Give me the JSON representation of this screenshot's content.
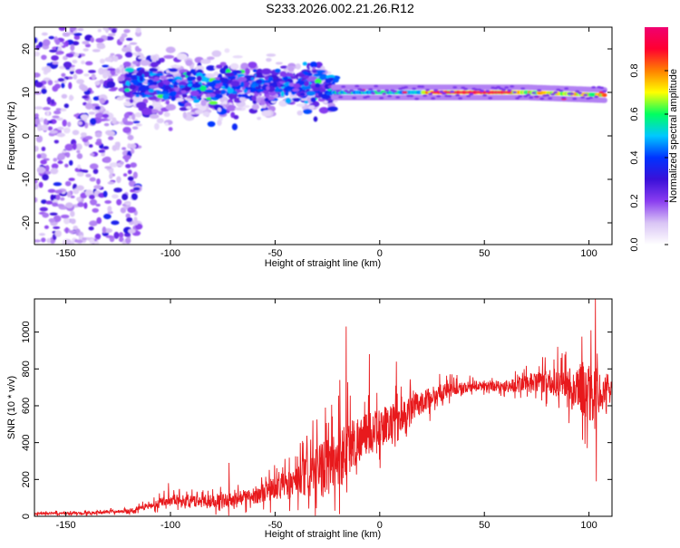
{
  "figure": {
    "title": "S233.2026.002.21.26.R12"
  },
  "chart_data": [
    {
      "type": "heatmap",
      "xlabel": "Height of straight line (km)",
      "ylabel": "Frequency (Hz)",
      "xlim": [
        -165,
        111
      ],
      "ylim": [
        -25,
        25
      ],
      "xticks": [
        -150,
        -100,
        -50,
        0,
        50,
        100
      ],
      "yticks": [
        -20,
        -10,
        0,
        10,
        20
      ],
      "colorbar": {
        "label": "Normalized spectral amplitude",
        "range": [
          0,
          1
        ],
        "ticks": [
          0.0,
          0.2,
          0.4,
          0.6,
          0.8
        ],
        "colormap": [
          "#ffffff",
          "#d9c4f5",
          "#8a3df0",
          "#3a10d8",
          "#0033ff",
          "#00c8ff",
          "#00ff60",
          "#ffff00",
          "#ff8000",
          "#ff0030",
          "#f00070"
        ]
      },
      "description_line": {
        "note": "dominant narrow band near 10 Hz from -20 km to 108 km",
        "frequency_hz": 10
      }
    },
    {
      "type": "line",
      "xlabel": "Height of straight line (km)",
      "ylabel": "SNR (10 * v/v)",
      "xlim": [
        -165,
        111
      ],
      "ylim": [
        0,
        1180
      ],
      "xticks": [
        -150,
        -100,
        -50,
        0,
        50,
        100
      ],
      "yticks": [
        0,
        200,
        400,
        600,
        800,
        1000
      ],
      "color": "#e8191c",
      "trend": {
        "x": [
          -165,
          -140,
          -120,
          -110,
          -100,
          -90,
          -80,
          -70,
          -60,
          -50,
          -40,
          -30,
          -20,
          -15,
          -10,
          -5,
          0,
          10,
          20,
          30,
          40,
          50,
          60,
          70,
          80,
          90,
          95,
          100,
          103,
          106,
          111
        ],
        "y": [
          15,
          18,
          30,
          55,
          95,
          80,
          85,
          90,
          110,
          150,
          190,
          230,
          320,
          380,
          420,
          450,
          480,
          540,
          620,
          680,
          700,
          710,
          705,
          720,
          730,
          720,
          700,
          660,
          640,
          690,
          690
        ]
      },
      "noise_amplitude": {
        "x": [
          -165,
          -120,
          -100,
          -60,
          -40,
          -30,
          -20,
          -15,
          -10,
          0,
          20,
          40,
          60,
          80,
          95,
          100,
          104,
          111
        ],
        "y": [
          8,
          12,
          40,
          60,
          120,
          200,
          260,
          240,
          180,
          150,
          90,
          40,
          45,
          90,
          160,
          260,
          180,
          25
        ]
      },
      "spikes": [
        {
          "x": -101,
          "y": 180
        },
        {
          "x": -72,
          "y": 290
        },
        {
          "x": -32,
          "y": 520
        },
        {
          "x": -26,
          "y": 590
        },
        {
          "x": -19,
          "y": 740
        },
        {
          "x": -16,
          "y": 1030
        },
        {
          "x": -5,
          "y": 880
        },
        {
          "x": 8,
          "y": 840
        },
        {
          "x": 85,
          "y": 920
        },
        {
          "x": 101,
          "y": 1010
        },
        {
          "x": 103,
          "y": 1180
        },
        {
          "x": 103.5,
          "y": 190
        }
      ]
    }
  ]
}
